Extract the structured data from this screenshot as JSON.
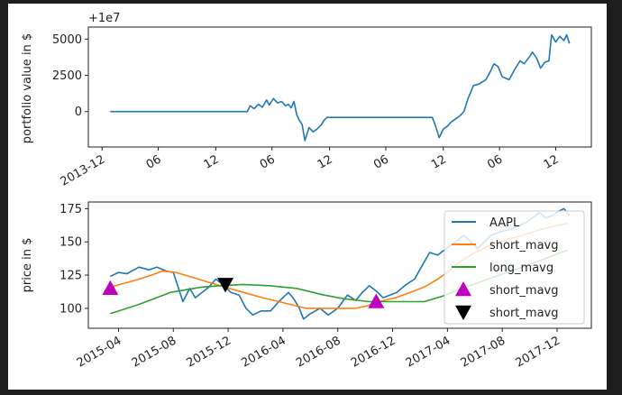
{
  "chart_data": [
    {
      "type": "line",
      "ylabel": "portfolio value in $",
      "offset_label": "+1e7",
      "ylim": [
        -2444,
        5833
      ],
      "xlim_months_since_2015_01": [
        0.8,
        37.5
      ],
      "yticks": [
        0,
        2500,
        5000
      ],
      "ytick_labels": [
        "0",
        "2500",
        "5000"
      ],
      "xticks": [
        1.8,
        5.9,
        10.1,
        14.2,
        18.4,
        22.5,
        26.7,
        30.8,
        34.9
      ],
      "xtick_labels": [
        "2013-12",
        "06",
        "12",
        "06",
        "12",
        "06",
        "12",
        "06",
        "12"
      ],
      "series": [
        {
          "name": "portfolio",
          "color": "#1f77b4",
          "x": [
            2.4,
            12.4,
            12.6,
            12.9,
            13.2,
            13.5,
            13.8,
            14.0,
            14.3,
            14.6,
            14.9,
            15.2,
            15.4,
            15.6,
            15.8,
            16.0,
            16.2,
            16.4,
            16.6,
            16.9,
            17.2,
            17.5,
            17.8,
            18.0,
            18.2,
            25.9,
            26.1,
            26.4,
            26.7,
            27.0,
            27.3,
            27.6,
            27.9,
            28.2,
            28.5,
            28.9,
            29.3,
            29.8,
            30.1,
            30.4,
            30.7,
            31.0,
            31.5,
            31.9,
            32.3,
            32.6,
            33.0,
            33.2,
            33.5,
            33.8,
            34.1,
            34.4,
            34.6,
            34.9,
            35.2,
            35.5,
            35.7,
            35.9
          ],
          "y": [
            0,
            0,
            400,
            200,
            500,
            300,
            800,
            450,
            900,
            600,
            700,
            400,
            500,
            250,
            700,
            -200,
            -600,
            -900,
            -2000,
            -1100,
            -1400,
            -1200,
            -900,
            -600,
            -400,
            -400,
            -900,
            -1800,
            -1200,
            -1000,
            -700,
            -500,
            -300,
            0,
            900,
            1800,
            1900,
            2200,
            2700,
            3300,
            3100,
            2400,
            2200,
            2900,
            3500,
            3300,
            3800,
            4100,
            3700,
            3000,
            3400,
            3500,
            5300,
            4800,
            5200,
            4900,
            5300,
            4700
          ]
        }
      ]
    },
    {
      "type": "line",
      "ylabel": "price in $",
      "ylim": [
        85,
        180
      ],
      "xlim_months_since_2015_01": [
        0.8,
        37.5
      ],
      "yticks": [
        100,
        125,
        150,
        175
      ],
      "ytick_labels": [
        "100",
        "125",
        "150",
        "175"
      ],
      "xticks": [
        3,
        7,
        11,
        15,
        19,
        23,
        27,
        31,
        35
      ],
      "xtick_labels": [
        "2015-04",
        "2015-08",
        "2015-12",
        "2016-04",
        "2016-08",
        "2016-12",
        "2017-04",
        "2017-08",
        "2017-12"
      ],
      "legend_position": "right",
      "series": [
        {
          "name": "AAPL",
          "color": "#1f77b4",
          "x": [
            2.4,
            3.0,
            3.6,
            4.5,
            5.2,
            5.8,
            6.5,
            7.0,
            7.7,
            8.2,
            8.6,
            9.1,
            9.6,
            10.1,
            10.6,
            11.2,
            11.8,
            12.3,
            12.8,
            13.4,
            14.1,
            14.7,
            15.4,
            15.8,
            16.2,
            16.5,
            17.0,
            17.7,
            18.3,
            19.0,
            19.7,
            20.3,
            20.8,
            21.3,
            21.8,
            22.3,
            22.8,
            23.3,
            24.0,
            24.6,
            25.2,
            25.7,
            26.3,
            26.9,
            27.6,
            28.2,
            28.7,
            29.2,
            29.7,
            30.2,
            31.0,
            31.8,
            32.8,
            33.7,
            34.2,
            34.7,
            35.1,
            35.5,
            35.9
          ],
          "y": [
            124,
            127,
            126,
            131,
            129,
            131,
            128,
            127,
            105,
            115,
            108,
            112,
            116,
            122,
            118,
            112,
            110,
            100,
            95,
            98,
            98,
            105,
            112,
            107,
            100,
            92,
            96,
            100,
            95,
            100,
            110,
            106,
            112,
            117,
            113,
            108,
            110,
            112,
            118,
            122,
            133,
            142,
            140,
            145,
            150,
            155,
            150,
            145,
            150,
            155,
            158,
            160,
            165,
            172,
            168,
            170,
            173,
            175,
            170
          ]
        },
        {
          "name": "short_mavg",
          "color": "#ff7f0e",
          "x": [
            2.4,
            4.2,
            5.4,
            6.2,
            7.2,
            8.5,
            10.1,
            12.1,
            13.5,
            14.7,
            16.7,
            18.5,
            20.3,
            21.2,
            22.0,
            23.2,
            24.3,
            25.3,
            26.3,
            27.1,
            27.9,
            29.0,
            30.2,
            31.4,
            32.5,
            34.0,
            35.8
          ],
          "y": [
            116,
            121,
            125,
            128,
            127,
            123,
            118,
            112,
            108,
            105,
            100,
            100,
            100,
            102,
            105,
            108,
            112,
            116,
            122,
            128,
            135,
            142,
            148,
            152,
            155,
            160,
            164
          ]
        },
        {
          "name": "long_mavg",
          "color": "#2ca02c",
          "x": [
            2.4,
            4.5,
            6.8,
            9.1,
            10.5,
            12.1,
            14.0,
            16.0,
            18.0,
            19.6,
            21.3,
            23.3,
            25.3,
            26.6,
            27.8,
            28.9,
            30.5,
            32.2,
            34.0,
            35.8
          ],
          "y": [
            96,
            103,
            112,
            116,
            117,
            118,
            117,
            115,
            110,
            107,
            105,
            105,
            105,
            109,
            114,
            118,
            124,
            130,
            137,
            144
          ]
        }
      ],
      "markers": [
        {
          "name": "short_mavg",
          "symbol": "triangle-up",
          "color": "#bf00bf",
          "x": [
            2.4,
            21.8
          ],
          "y": [
            115,
            105
          ]
        },
        {
          "name": "short_mavg",
          "symbol": "triangle-down",
          "color": "#000000",
          "x": [
            10.8
          ],
          "y": [
            118
          ]
        }
      ],
      "legend": [
        "AAPL",
        "short_mavg",
        "long_mavg",
        "short_mavg",
        "short_mavg"
      ]
    }
  ]
}
